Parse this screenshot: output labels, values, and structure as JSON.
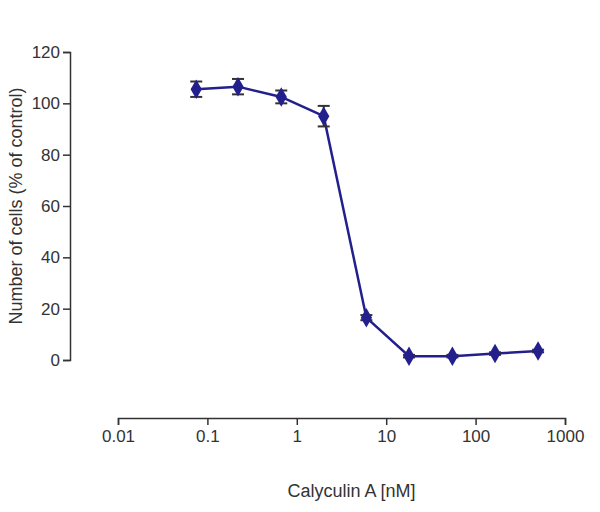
{
  "chart_data": {
    "type": "line",
    "x_label": "Calyculin A [nM]",
    "y_label": "Number of cells (% of control)",
    "x": [
      0.075,
      0.22,
      0.67,
      2,
      6,
      18,
      55,
      165,
      500
    ],
    "values": [
      105.5,
      106.5,
      102.5,
      95,
      16.5,
      1.5,
      1.5,
      2.5,
      3.5
    ],
    "errors": [
      3,
      3,
      2.5,
      4,
      1,
      0.5,
      0.5,
      0.5,
      0.5
    ],
    "color": "#231f8c",
    "marker": "diamond",
    "line_style": "solid",
    "log": "x",
    "grid": false,
    "xlim": [
      0.01,
      1000
    ],
    "xticks": [
      0.01,
      0.1,
      1,
      10,
      100,
      1000
    ],
    "ylim": [
      0,
      120
    ],
    "yticks": [
      0,
      20,
      40,
      60,
      80,
      100,
      120
    ]
  }
}
